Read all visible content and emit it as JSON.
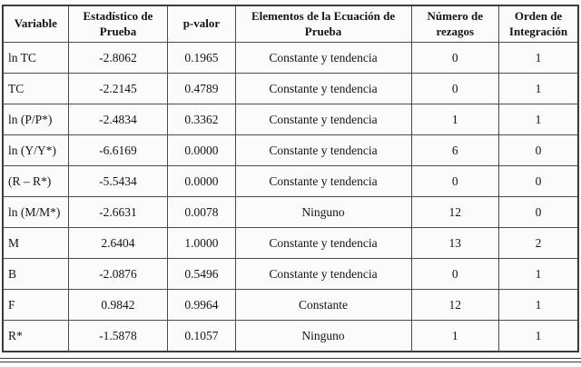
{
  "table": {
    "col_keys": [
      "variable",
      "estadistico-de-prueba",
      "p-valor",
      "elementos-ecuacion",
      "numero-rezagos",
      "orden-integracion"
    ],
    "columns": [
      "Variable",
      "Estadístico de Prueba",
      "p-valor",
      "Elementos de la Ecuación de Prueba",
      "Número de rezagos",
      "Orden de Integración"
    ],
    "rows": [
      [
        "ln TC",
        "-2.8062",
        "0.1965",
        "Constante y tendencia",
        "0",
        "1"
      ],
      [
        "TC",
        "-2.2145",
        "0.4789",
        "Constante y tendencia",
        "0",
        "1"
      ],
      [
        "ln (P/P*)",
        "-2.4834",
        "0.3362",
        "Constante y tendencia",
        "1",
        "1"
      ],
      [
        "ln (Y/Y*)",
        "-6.6169",
        "0.0000",
        "Constante y tendencia",
        "6",
        "0"
      ],
      [
        "(R – R*)",
        "-5.5434",
        "0.0000",
        "Constante y tendencia",
        "0",
        "0"
      ],
      [
        "ln (M/M*)",
        "-2.6631",
        "0.0078",
        "Ninguno",
        "12",
        "0"
      ],
      [
        "M",
        "2.6404",
        "1.0000",
        "Constante y tendencia",
        "13",
        "2"
      ],
      [
        "B",
        "-2.0876",
        "0.5496",
        "Constante y tendencia",
        "0",
        "1"
      ],
      [
        "F",
        "0.9842",
        "0.9964",
        "Constante",
        "12",
        "1"
      ],
      [
        "R*",
        "-1.5878",
        "0.1057",
        "Ninguno",
        "1",
        "1"
      ]
    ]
  },
  "chart_data": {
    "type": "table",
    "title": "",
    "columns": [
      "Variable",
      "Estadístico de Prueba",
      "p-valor",
      "Elementos de la Ecuación de Prueba",
      "Número de rezagos",
      "Orden de Integración"
    ],
    "rows": [
      [
        "ln TC",
        -2.8062,
        0.1965,
        "Constante y tendencia",
        0,
        1
      ],
      [
        "TC",
        -2.2145,
        0.4789,
        "Constante y tendencia",
        0,
        1
      ],
      [
        "ln (P/P*)",
        -2.4834,
        0.3362,
        "Constante y tendencia",
        1,
        1
      ],
      [
        "ln (Y/Y*)",
        -6.6169,
        0.0,
        "Constante y tendencia",
        6,
        0
      ],
      [
        "(R – R*)",
        -5.5434,
        0.0,
        "Constante y tendencia",
        0,
        0
      ],
      [
        "ln (M/M*)",
        -2.6631,
        0.0078,
        "Ninguno",
        12,
        0
      ],
      [
        "M",
        2.6404,
        1.0,
        "Constante y tendencia",
        13,
        2
      ],
      [
        "B",
        -2.0876,
        0.5496,
        "Constante y tendencia",
        0,
        1
      ],
      [
        "F",
        0.9842,
        0.9964,
        "Constante",
        12,
        1
      ],
      [
        "R*",
        -1.5878,
        0.1057,
        "Ninguno",
        1,
        1
      ]
    ]
  },
  "colors": {
    "background": "#fbfbfb",
    "border": "#3c3c3c",
    "text": "#141414"
  }
}
